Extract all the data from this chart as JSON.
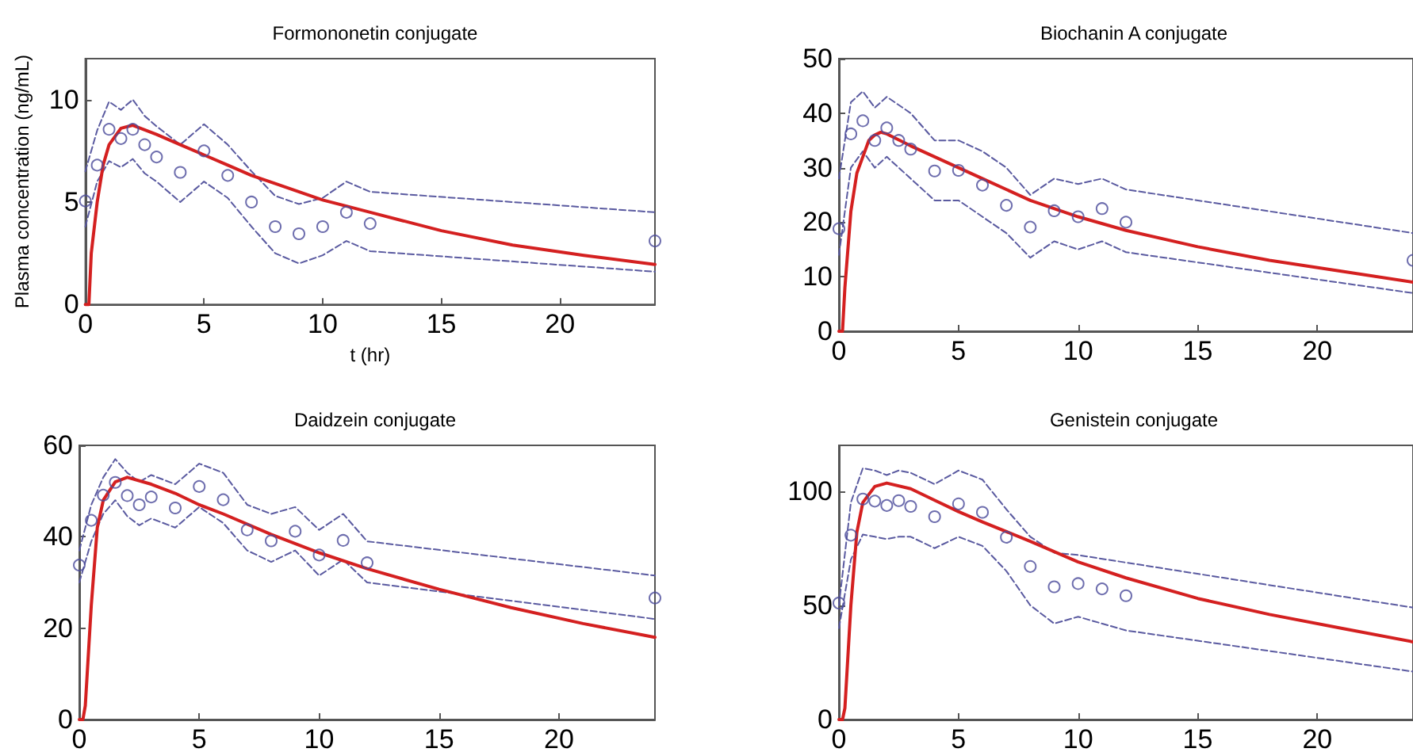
{
  "chart_data": [
    {
      "type": "line",
      "title": "Formononetin conjugate",
      "xlabel": "t (hr)",
      "ylabel": "Plasma concentration (ng/mL)",
      "xlim": [
        0,
        24
      ],
      "xticks": [
        0,
        5,
        10,
        15,
        20
      ],
      "ylim": [
        0,
        12
      ],
      "yticks": [
        0,
        5,
        10
      ],
      "series": [
        {
          "type": "scatter",
          "marker": "circle",
          "color": "#4a4a9a",
          "x": [
            0,
            0.5,
            1,
            1.5,
            2,
            2.5,
            3,
            4,
            5,
            6,
            7,
            8,
            9,
            10,
            11,
            12,
            24
          ],
          "values": [
            5.05,
            6.8,
            8.55,
            8.1,
            8.55,
            7.8,
            7.2,
            6.45,
            7.5,
            6.3,
            5.0,
            3.8,
            3.45,
            3.8,
            4.5,
            3.95,
            3.1
          ]
        },
        {
          "type": "line",
          "marker": "none",
          "line_style": "dashed",
          "color": "#5a5aa0",
          "x": [
            0,
            0.5,
            1,
            1.5,
            2,
            2.5,
            3,
            4,
            5,
            6,
            7,
            8,
            9,
            10,
            11,
            12,
            24
          ],
          "values": [
            6.5,
            8.5,
            9.9,
            9.5,
            10.0,
            9.2,
            8.7,
            7.8,
            8.8,
            7.8,
            6.5,
            5.3,
            4.9,
            5.2,
            6.0,
            5.5,
            4.5
          ]
        },
        {
          "type": "line",
          "marker": "none",
          "line_style": "dashed",
          "color": "#5a5aa0",
          "x": [
            0,
            0.5,
            1,
            1.5,
            2,
            2.5,
            3,
            4,
            5,
            6,
            7,
            8,
            9,
            10,
            11,
            12,
            24
          ],
          "values": [
            3.8,
            6.0,
            7.0,
            6.7,
            7.1,
            6.4,
            6.0,
            5.0,
            6.0,
            5.2,
            3.8,
            2.5,
            2.0,
            2.4,
            3.1,
            2.6,
            1.6
          ]
        },
        {
          "type": "line",
          "marker": "none",
          "line_style": "solid",
          "color": "#d42020",
          "x": [
            0,
            0.15,
            0.25,
            0.5,
            0.75,
            1,
            1.5,
            2,
            3,
            4,
            5,
            6,
            7,
            8,
            10,
            12,
            15,
            18,
            21,
            24
          ],
          "values": [
            0,
            0,
            2.5,
            5,
            6.8,
            7.8,
            8.6,
            8.75,
            8.3,
            7.8,
            7.3,
            6.8,
            6.3,
            5.9,
            5.1,
            4.5,
            3.6,
            2.9,
            2.4,
            1.95
          ]
        }
      ]
    },
    {
      "type": "line",
      "title": "Biochanin A conjugate",
      "xlim": [
        0,
        24
      ],
      "xticks": [
        0,
        5,
        10,
        15,
        20
      ],
      "ylim": [
        0,
        50
      ],
      "yticks": [
        0,
        10,
        20,
        30,
        40,
        50
      ],
      "series": [
        {
          "type": "scatter",
          "marker": "circle",
          "color": "#4a4a9a",
          "x": [
            0,
            0.5,
            1,
            1.5,
            2,
            2.5,
            3,
            4,
            5,
            6,
            7,
            8,
            9,
            10,
            11,
            12,
            24
          ],
          "values": [
            18.8,
            36.2,
            38.6,
            35,
            37.3,
            35,
            33.4,
            29.4,
            29.5,
            26.8,
            23.1,
            19.1,
            22.1,
            21,
            22.5,
            20,
            13
          ]
        },
        {
          "type": "line",
          "marker": "none",
          "line_style": "dashed",
          "color": "#5a5aa0",
          "x": [
            0,
            0.5,
            1,
            1.5,
            2,
            3,
            4,
            5,
            6,
            7,
            8,
            9,
            10,
            11,
            12,
            24
          ],
          "values": [
            28,
            42,
            44,
            41,
            43,
            40,
            35,
            35,
            33,
            30,
            25,
            28,
            27,
            28,
            26,
            18
          ]
        },
        {
          "type": "line",
          "marker": "none",
          "line_style": "dashed",
          "color": "#5a5aa0",
          "x": [
            0,
            0.5,
            1,
            1.5,
            2,
            3,
            4,
            5,
            6,
            7,
            8,
            9,
            10,
            11,
            12,
            24
          ],
          "values": [
            14,
            30,
            33,
            30,
            32,
            28,
            24,
            24,
            21,
            18,
            13.5,
            16.5,
            15,
            16.5,
            14.5,
            7
          ]
        },
        {
          "type": "line",
          "marker": "none",
          "line_style": "solid",
          "color": "#d42020",
          "x": [
            0,
            0.15,
            0.25,
            0.5,
            0.75,
            1,
            1.25,
            1.5,
            1.75,
            2,
            3,
            4,
            5,
            6,
            8,
            10,
            12,
            15,
            18,
            21,
            24
          ],
          "values": [
            0,
            0,
            8,
            22,
            29,
            32,
            35,
            36,
            36.5,
            36.2,
            34,
            32,
            30,
            28,
            24,
            21,
            18.5,
            15.5,
            13,
            11,
            9
          ]
        }
      ]
    },
    {
      "type": "line",
      "title": "Daidzein conjugate",
      "xlim": [
        0,
        24
      ],
      "xticks": [
        0,
        5,
        10,
        15,
        20
      ],
      "ylim": [
        0,
        60
      ],
      "yticks": [
        0,
        20,
        40,
        60
      ],
      "series": [
        {
          "type": "scatter",
          "marker": "circle",
          "color": "#4a4a9a",
          "x": [
            0,
            0.5,
            1,
            1.5,
            2,
            2.5,
            3,
            4,
            5,
            6,
            7,
            8,
            9,
            10,
            11,
            12,
            24
          ],
          "values": [
            33.8,
            43.6,
            49.1,
            51.9,
            49,
            47,
            48.7,
            46.3,
            51,
            48.1,
            41.5,
            39.1,
            41.2,
            36,
            39.2,
            34.3,
            26.6
          ]
        },
        {
          "type": "line",
          "marker": "none",
          "line_style": "dashed",
          "color": "#5a5aa0",
          "x": [
            0,
            0.5,
            1,
            1.5,
            2,
            2.5,
            3,
            4,
            5,
            6,
            7,
            8,
            9,
            10,
            11,
            12,
            24
          ],
          "values": [
            37,
            47,
            53,
            57,
            54,
            52,
            53.5,
            51.5,
            56,
            54,
            47,
            45,
            46.5,
            41.5,
            45,
            39,
            31.5
          ]
        },
        {
          "type": "line",
          "marker": "none",
          "line_style": "dashed",
          "color": "#5a5aa0",
          "x": [
            0,
            0.5,
            1,
            1.5,
            2,
            2.5,
            3,
            4,
            5,
            6,
            7,
            8,
            9,
            10,
            11,
            12,
            24
          ],
          "values": [
            30,
            39,
            45,
            48,
            44.5,
            42.5,
            44,
            42,
            46.5,
            43,
            37,
            34.5,
            37,
            31.5,
            35,
            30,
            22
          ]
        },
        {
          "type": "line",
          "marker": "none",
          "line_style": "solid",
          "color": "#d42020",
          "x": [
            0,
            0.15,
            0.25,
            0.5,
            0.75,
            1,
            1.5,
            2,
            3,
            4,
            5,
            6,
            8,
            10,
            12,
            15,
            18,
            21,
            24
          ],
          "values": [
            0,
            0,
            3,
            25,
            42,
            48,
            52,
            53,
            51.5,
            49.5,
            47,
            45,
            40.5,
            36.5,
            33,
            28.5,
            24.5,
            21,
            18
          ]
        }
      ]
    },
    {
      "type": "line",
      "title": "Genistein conjugate",
      "xlim": [
        0,
        24
      ],
      "xticks": [
        0,
        5,
        10,
        15,
        20
      ],
      "ylim": [
        0,
        120
      ],
      "yticks": [
        0,
        50,
        100
      ],
      "series": [
        {
          "type": "scatter",
          "marker": "circle",
          "color": "#4a4a9a",
          "x": [
            0,
            0.5,
            1,
            1.5,
            2,
            2.5,
            3,
            4,
            5,
            6,
            7,
            8,
            9,
            10,
            11,
            12
          ],
          "values": [
            51,
            80.7,
            96.5,
            95.6,
            93.7,
            95.8,
            93.3,
            88.8,
            94.4,
            90.7,
            79.8,
            67,
            58.1,
            59.5,
            57.2,
            54.2
          ]
        },
        {
          "type": "line",
          "marker": "none",
          "line_style": "dashed",
          "color": "#5a5aa0",
          "x": [
            0,
            0.5,
            1,
            1.5,
            2,
            2.5,
            3,
            4,
            5,
            6,
            7,
            8,
            9,
            10,
            24
          ],
          "values": [
            50,
            95,
            110,
            109,
            107,
            109,
            108,
            103,
            109,
            105,
            92,
            80,
            73,
            72,
            49
          ]
        },
        {
          "type": "line",
          "marker": "none",
          "line_style": "dashed",
          "color": "#5a5aa0",
          "x": [
            0,
            0.5,
            1,
            1.5,
            2,
            2.5,
            3,
            4,
            5,
            6,
            7,
            8,
            9,
            10,
            12,
            24
          ],
          "values": [
            40,
            70,
            81,
            80,
            79,
            80,
            80,
            75,
            80,
            76,
            65,
            50,
            42,
            45,
            39,
            21
          ]
        },
        {
          "type": "line",
          "marker": "none",
          "line_style": "solid",
          "color": "#d42020",
          "x": [
            0,
            0.15,
            0.25,
            0.5,
            0.75,
            1,
            1.5,
            2,
            3,
            4,
            5,
            6,
            8,
            10,
            12,
            15,
            18,
            21,
            24
          ],
          "values": [
            0,
            0,
            5,
            50,
            82,
            95,
            102,
            103.5,
            101,
            96,
            91,
            86.5,
            78,
            69,
            62,
            53,
            46,
            40,
            34
          ]
        }
      ]
    }
  ]
}
